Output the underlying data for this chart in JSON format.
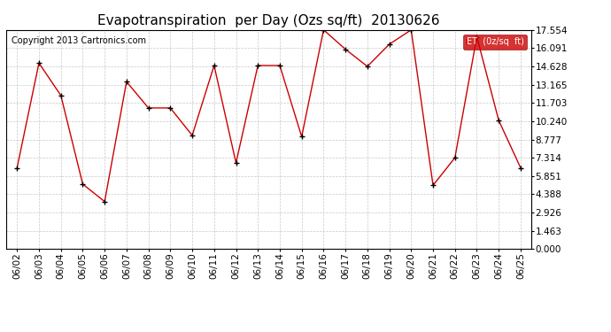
{
  "title": "Evapotranspiration  per Day (Ozs sq/ft)  20130626",
  "copyright": "Copyright 2013 Cartronics.com",
  "legend_label": "ET  (0z/sq  ft)",
  "dates": [
    "06/02",
    "06/03",
    "06/04",
    "06/05",
    "06/06",
    "06/07",
    "06/08",
    "06/09",
    "06/10",
    "06/11",
    "06/12",
    "06/13",
    "06/14",
    "06/15",
    "06/16",
    "06/17",
    "06/18",
    "06/19",
    "06/20",
    "06/21",
    "06/22",
    "06/23",
    "06/24",
    "06/25"
  ],
  "values": [
    6.5,
    14.9,
    12.3,
    5.2,
    3.8,
    13.4,
    11.3,
    11.3,
    9.1,
    14.7,
    6.9,
    14.7,
    14.7,
    9.0,
    17.554,
    16.0,
    14.628,
    16.4,
    17.554,
    5.1,
    7.314,
    17.0,
    10.3,
    6.5
  ],
  "line_color": "#cc0000",
  "marker": "+",
  "grid_color": "#c8c8c8",
  "bg_color": "#ffffff",
  "yticks": [
    0.0,
    1.463,
    2.926,
    4.388,
    5.851,
    7.314,
    8.777,
    10.24,
    11.703,
    13.165,
    14.628,
    16.091,
    17.554
  ],
  "ylim": [
    0.0,
    17.554
  ],
  "legend_bg": "#cc0000",
  "legend_text_color": "#ffffff",
  "title_fontsize": 11,
  "copyright_fontsize": 7,
  "axis_tick_fontsize": 7.5
}
